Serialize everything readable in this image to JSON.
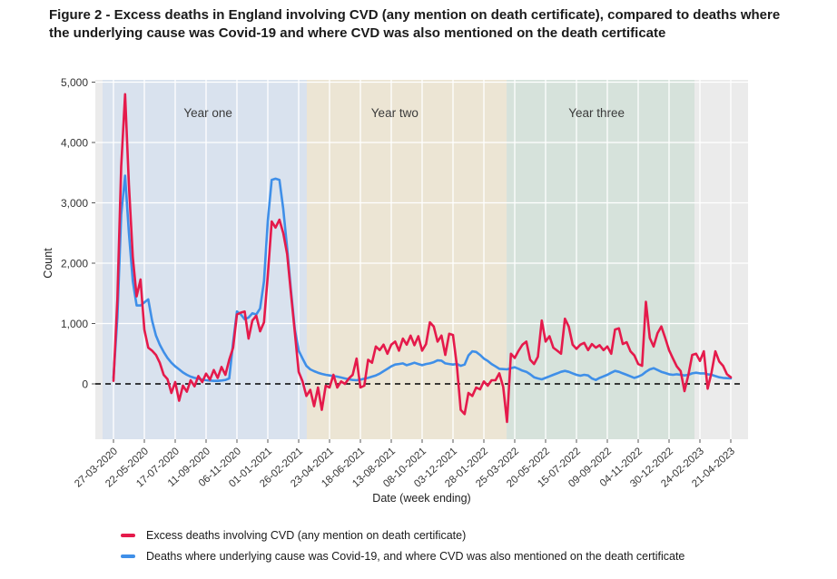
{
  "figure": {
    "title": "Figure 2 - Excess deaths in England involving CVD (any mention on death certificate), compared to deaths where the underlying cause was Covid-19 and where CVD was also mentioned on the death certificate"
  },
  "chart_data": {
    "type": "line",
    "xlabel": "Date (week ending)",
    "ylabel": "Count",
    "plot_bg": "#ebebeb",
    "grid_color": "#ffffff",
    "zero_line_color": "#000000",
    "ylim": [
      -920,
      5040
    ],
    "y_tick_values": [
      0,
      1000,
      2000,
      3000,
      4000,
      5000
    ],
    "y_tick_labels": [
      "0",
      "1,000",
      "2,000",
      "3,000",
      "4,000",
      "5,000"
    ],
    "x_tick_weeks": [
      0,
      8,
      16,
      24,
      32,
      40,
      48,
      56,
      64,
      72,
      80,
      88,
      96,
      104,
      112,
      120,
      128,
      136,
      144,
      152,
      160
    ],
    "x_tick_labels": [
      "27-03-2020",
      "22-05-2020",
      "17-07-2020",
      "11-09-2020",
      "06-11-2020",
      "01-01-2021",
      "26-02-2021",
      "23-04-2021",
      "18-06-2021",
      "13-08-2021",
      "08-10-2021",
      "03-12-2021",
      "28-01-2022",
      "25-03-2022",
      "20-05-2022",
      "15-07-2022",
      "09-09-2022",
      "04-11-2022",
      "30-12-2022",
      "24-02-2023",
      "21-04-2023"
    ],
    "bands": [
      {
        "label": "Year one",
        "color": "#d9e2ee",
        "start_week": -2.8,
        "end_week": 50.1,
        "label_week": 24.5
      },
      {
        "label": "Year two",
        "color": "#ece5d4",
        "start_week": 50.1,
        "end_week": 101.9,
        "label_week": 72.9
      },
      {
        "label": "Year three",
        "color": "#d6e2db",
        "start_week": 101.9,
        "end_week": 150.6,
        "label_week": 125.2
      }
    ],
    "series": [
      {
        "name": "Excess deaths involving CVD (any mention on death certificate)",
        "color": "#e51a4b",
        "values": [
          50,
          1400,
          3600,
          4800,
          3300,
          2100,
          1450,
          1730,
          900,
          600,
          550,
          480,
          350,
          150,
          80,
          -150,
          30,
          -280,
          -30,
          -130,
          60,
          -40,
          130,
          30,
          170,
          70,
          230,
          100,
          280,
          150,
          400,
          600,
          1150,
          1180,
          1200,
          750,
          1050,
          1130,
          870,
          1020,
          1800,
          2690,
          2590,
          2720,
          2500,
          2150,
          1500,
          850,
          200,
          40,
          -200,
          -100,
          -370,
          -60,
          -430,
          -30,
          -60,
          150,
          -60,
          40,
          0,
          90,
          150,
          420,
          -60,
          -30,
          400,
          350,
          620,
          560,
          650,
          500,
          650,
          700,
          550,
          750,
          650,
          800,
          640,
          790,
          550,
          660,
          1020,
          950,
          700,
          800,
          480,
          830,
          810,
          300,
          -430,
          -500,
          -150,
          -200,
          -60,
          -90,
          40,
          -30,
          60,
          60,
          175,
          -50,
          -630,
          500,
          430,
          550,
          650,
          700,
          400,
          330,
          450,
          1050,
          700,
          790,
          600,
          550,
          500,
          1080,
          950,
          650,
          580,
          650,
          680,
          560,
          660,
          600,
          640,
          560,
          620,
          500,
          900,
          920,
          660,
          690,
          540,
          470,
          330,
          300,
          1360,
          760,
          620,
          840,
          950,
          760,
          560,
          420,
          290,
          210,
          -120,
          150,
          480,
          500,
          380,
          540,
          -80,
          190,
          540,
          370,
          300,
          160,
          110
        ]
      },
      {
        "name": "Deaths where underlying cause was Covid-19, and where CVD was also mentioned on the death certificate",
        "color": "#3f8fe8",
        "values": [
          100,
          1100,
          2800,
          3450,
          2500,
          1700,
          1300,
          1300,
          1350,
          1400,
          1050,
          800,
          650,
          530,
          430,
          350,
          290,
          240,
          190,
          150,
          120,
          100,
          85,
          70,
          60,
          55,
          50,
          50,
          55,
          65,
          90,
          690,
          1200,
          1150,
          1070,
          1100,
          1170,
          1150,
          1250,
          1700,
          2700,
          3380,
          3400,
          3380,
          2900,
          2250,
          1550,
          900,
          550,
          420,
          300,
          240,
          210,
          185,
          165,
          150,
          140,
          130,
          120,
          105,
          90,
          75,
          65,
          60,
          70,
          85,
          100,
          120,
          140,
          170,
          210,
          250,
          290,
          320,
          330,
          340,
          310,
          330,
          350,
          330,
          310,
          330,
          340,
          360,
          390,
          385,
          340,
          330,
          320,
          330,
          300,
          320,
          470,
          540,
          530,
          480,
          420,
          380,
          330,
          290,
          250,
          245,
          240,
          260,
          275,
          250,
          220,
          200,
          160,
          110,
          90,
          75,
          100,
          125,
          150,
          175,
          200,
          215,
          200,
          175,
          150,
          135,
          150,
          140,
          90,
          65,
          100,
          125,
          150,
          185,
          215,
          200,
          175,
          150,
          125,
          100,
          120,
          150,
          200,
          240,
          260,
          230,
          200,
          180,
          160,
          150,
          160,
          150,
          140,
          150,
          175,
          185,
          175,
          175,
          160,
          150,
          130,
          110,
          100,
          95,
          90
        ]
      }
    ]
  }
}
